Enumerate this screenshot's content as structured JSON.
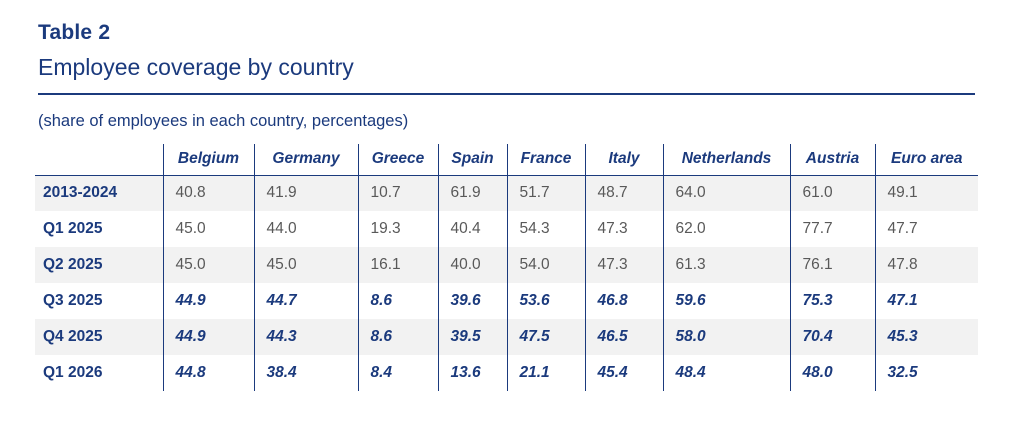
{
  "page": {
    "label": "Table 2",
    "title": "Employee coverage by country",
    "note": "(share of employees in each country, percentages)"
  },
  "colors": {
    "accent_navy": "#1b3a7d",
    "value_gray": "#595959",
    "zebra_row_bg": "#f2f2f2"
  },
  "table": {
    "columns": [
      "Belgium",
      "Germany",
      "Greece",
      "Spain",
      "France",
      "Italy",
      "Netherlands",
      "Austria",
      "Euro area"
    ],
    "rows": [
      {
        "label": "2013-2024",
        "emphasis": false,
        "values": [
          "40.8",
          "41.9",
          "10.7",
          "61.9",
          "51.7",
          "48.7",
          "64.0",
          "61.0",
          "49.1"
        ]
      },
      {
        "label": "Q1 2025",
        "emphasis": false,
        "values": [
          "45.0",
          "44.0",
          "19.3",
          "40.4",
          "54.3",
          "47.3",
          "62.0",
          "77.7",
          "47.7"
        ]
      },
      {
        "label": "Q2 2025",
        "emphasis": false,
        "values": [
          "45.0",
          "45.0",
          "16.1",
          "40.0",
          "54.0",
          "47.3",
          "61.3",
          "76.1",
          "47.8"
        ]
      },
      {
        "label": "Q3 2025",
        "emphasis": true,
        "values": [
          "44.9",
          "44.7",
          "8.6",
          "39.6",
          "53.6",
          "46.8",
          "59.6",
          "75.3",
          "47.1"
        ]
      },
      {
        "label": "Q4 2025",
        "emphasis": true,
        "values": [
          "44.9",
          "44.3",
          "8.6",
          "39.5",
          "47.5",
          "46.5",
          "58.0",
          "70.4",
          "45.3"
        ]
      },
      {
        "label": "Q1 2026",
        "emphasis": true,
        "values": [
          "44.8",
          "38.4",
          "8.4",
          "13.6",
          "21.1",
          "45.4",
          "48.4",
          "48.0",
          "32.5"
        ]
      }
    ]
  }
}
